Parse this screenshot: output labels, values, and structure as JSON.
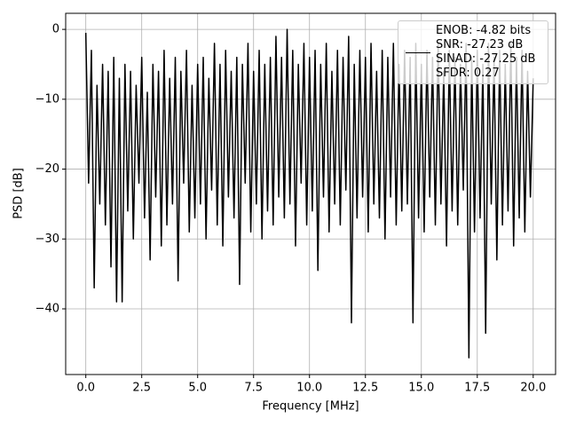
{
  "chart_data": {
    "type": "line",
    "x_label": "Frequency [MHz]",
    "y_label": "PSD [dB]",
    "xlim": [
      -0.9,
      21
    ],
    "ylim": [
      -49.4,
      2.3
    ],
    "grid": true,
    "legend": "upper right",
    "xticks": [
      {
        "value": 0,
        "label": "0.0"
      },
      2.5,
      {
        "value": 5,
        "label": "5.0"
      },
      7.5,
      {
        "value": 10,
        "label": "10.0"
      },
      12.5,
      {
        "value": 15,
        "label": "15.0"
      },
      17.5,
      {
        "value": 20,
        "label": "20.0"
      }
    ],
    "yticks": [
      {
        "value": -40,
        "label": "−40"
      },
      {
        "value": -30,
        "label": "−30"
      },
      {
        "value": -20,
        "label": "−20"
      },
      {
        "value": -10,
        "label": "−10"
      },
      0
    ],
    "x": [
      0,
      0.125,
      0.25,
      0.375,
      0.5,
      0.625,
      0.75,
      0.875,
      1,
      1.125,
      1.25,
      1.375,
      1.5,
      1.625,
      1.75,
      1.875,
      2,
      2.125,
      2.25,
      2.375,
      2.5,
      2.625,
      2.75,
      2.875,
      3,
      3.125,
      3.25,
      3.375,
      3.5,
      3.625,
      3.75,
      3.875,
      4,
      4.125,
      4.25,
      4.375,
      4.5,
      4.625,
      4.75,
      4.875,
      5,
      5.125,
      5.25,
      5.375,
      5.5,
      5.625,
      5.75,
      5.875,
      6,
      6.125,
      6.25,
      6.375,
      6.5,
      6.625,
      6.75,
      6.875,
      7,
      7.125,
      7.25,
      7.375,
      7.5,
      7.625,
      7.75,
      7.875,
      8,
      8.125,
      8.25,
      8.375,
      8.5,
      8.625,
      8.75,
      8.875,
      9,
      9.125,
      9.25,
      9.375,
      9.5,
      9.625,
      9.75,
      9.875,
      10,
      10.125,
      10.25,
      10.375,
      10.5,
      10.625,
      10.75,
      10.875,
      11,
      11.125,
      11.25,
      11.375,
      11.5,
      11.625,
      11.75,
      11.875,
      12,
      12.125,
      12.25,
      12.375,
      12.5,
      12.625,
      12.75,
      12.875,
      13,
      13.125,
      13.25,
      13.375,
      13.5,
      13.625,
      13.75,
      13.875,
      14,
      14.125,
      14.25,
      14.375,
      14.5,
      14.625,
      14.75,
      14.875,
      15,
      15.125,
      15.25,
      15.375,
      15.5,
      15.625,
      15.75,
      15.875,
      16,
      16.125,
      16.25,
      16.375,
      16.5,
      16.625,
      16.75,
      16.875,
      17,
      17.125,
      17.25,
      17.375,
      17.5,
      17.625,
      17.75,
      17.875,
      18,
      18.125,
      18.25,
      18.375,
      18.5,
      18.625,
      18.75,
      18.875,
      19,
      19.125,
      19.25,
      19.375,
      19.5,
      19.625,
      19.75,
      19.875,
      20
    ],
    "series": [
      {
        "name": "ENOB: -4.82 bits\nSNR: -27.23 dB\nSINAD: -27.25 dB\nSFDR: 0.27",
        "color": "#000000",
        "values": [
          -0.5,
          -22,
          -3,
          -37,
          -8,
          -25,
          -5,
          -28,
          -6,
          -34,
          -4,
          -39,
          -7,
          -39,
          -5,
          -26,
          -6,
          -30,
          -8,
          -22,
          -4,
          -27,
          -9,
          -33,
          -5,
          -24,
          -6,
          -31,
          -3,
          -28,
          -7,
          -25,
          -4,
          -36,
          -6,
          -22,
          -3,
          -29,
          -8,
          -27,
          -5,
          -25,
          -4,
          -30,
          -7,
          -23,
          -2,
          -28,
          -5,
          -31,
          -3,
          -24,
          -6,
          -27,
          -4,
          -36.5,
          -5,
          -22,
          -2,
          -29,
          -6,
          -25,
          -3,
          -30,
          -5,
          -26,
          -4,
          -28,
          -1,
          -24,
          -4,
          -27,
          0,
          -25,
          -3,
          -31,
          -5,
          -22,
          -2,
          -28,
          -4,
          -26,
          -3,
          -34.5,
          -5,
          -24,
          -2,
          -29,
          -6,
          -25,
          -3,
          -28,
          -4,
          -23,
          -1,
          -42,
          -5,
          -27,
          -3,
          -24,
          -4,
          -29,
          -2,
          -25,
          -6,
          -27,
          -3,
          -30,
          -4,
          -24,
          -2,
          -28,
          -5,
          -26,
          -3,
          -25,
          -4,
          -42,
          -2,
          -27,
          -5,
          -29,
          -3,
          -24,
          -4,
          -28,
          -2,
          -25,
          -6,
          -31,
          -3,
          -26,
          -4,
          -28,
          -5,
          -23,
          -2,
          -47,
          -4,
          -29,
          -3,
          -27,
          -5,
          -43.5,
          -2,
          -25,
          -4,
          -33,
          -3,
          -28,
          -5,
          -26,
          -2,
          -31,
          -4,
          -27,
          -3,
          -29,
          -6,
          -24,
          -7
        ]
      }
    ]
  }
}
